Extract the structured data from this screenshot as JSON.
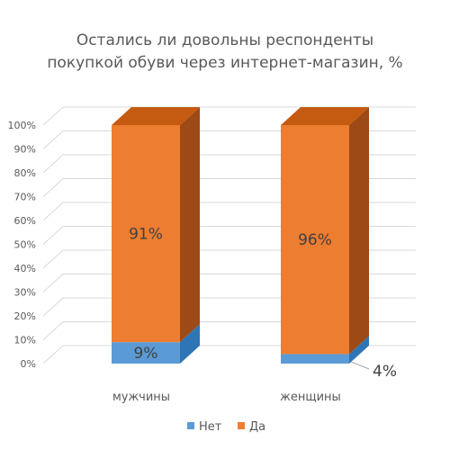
{
  "chart_data": {
    "type": "bar",
    "stacked": true,
    "percent_stacked": true,
    "three_d": true,
    "title": "Остались ли довольны респонденты покупкой обуви через интернет-магазин, %",
    "title_lines": [
      "Остались ли довольны респонденты",
      "покупкой обуви через интернет-магазин, %"
    ],
    "categories": [
      "мужчины",
      "женщины"
    ],
    "series": [
      {
        "name": "Нет",
        "values": [
          9,
          4
        ],
        "labels": [
          "9%",
          "4%"
        ],
        "color": "#5b9bd5",
        "side_color": "#2e75b6"
      },
      {
        "name": "Да",
        "values": [
          91,
          96
        ],
        "labels": [
          "91%",
          "96%"
        ],
        "color": "#ed7d31",
        "side_color": "#9e4a17"
      }
    ],
    "ylim": [
      0,
      100
    ],
    "y_ticks": [
      "0%",
      "10%",
      "20%",
      "30%",
      "40%",
      "50%",
      "60%",
      "70%",
      "80%",
      "90%",
      "100%"
    ],
    "grid": true,
    "legend": "bottom",
    "xlabel": "",
    "ylabel": ""
  }
}
